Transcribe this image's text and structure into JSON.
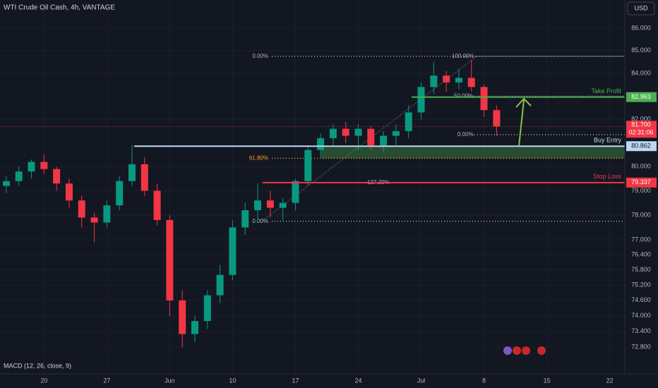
{
  "chart_data": {
    "type": "candlestick",
    "title": "WTI Crude Oil Cash, 4h, VANTAGE",
    "currency": "USD",
    "indicator": "MACD (12, 26, close, 9)",
    "log_scale": true,
    "grid": true,
    "up_color": "#089981",
    "down_color": "#f23645",
    "xlim": [
      -0.5,
      49.2
    ],
    "xticks": [
      {
        "value": 3,
        "label": "20"
      },
      {
        "value": 8,
        "label": "27"
      },
      {
        "value": 13,
        "label": "Jun"
      },
      {
        "value": 18,
        "label": "10"
      },
      {
        "value": 23,
        "label": "17"
      },
      {
        "value": 28,
        "label": "24"
      },
      {
        "value": 33,
        "label": "Jul"
      },
      {
        "value": 38,
        "label": "8"
      },
      {
        "value": 43,
        "label": "15"
      },
      {
        "value": 48,
        "label": "22"
      }
    ],
    "ylim": [
      71.79,
      87.28
    ],
    "yticks": [
      {
        "value": 72.8,
        "label": "72.800"
      },
      {
        "value": 73.4,
        "label": "73.400"
      },
      {
        "value": 74,
        "label": "74.000"
      },
      {
        "value": 74.6,
        "label": "74.600"
      },
      {
        "value": 75.2,
        "label": "75.200"
      },
      {
        "value": 75.8,
        "label": "75.800"
      },
      {
        "value": 76.4,
        "label": "76.400"
      },
      {
        "value": 77,
        "label": "77.000"
      },
      {
        "value": 78,
        "label": "78.000"
      },
      {
        "value": 79,
        "label": "79.000"
      },
      {
        "value": 80,
        "label": "80.000"
      },
      {
        "value": 82,
        "label": "82.000"
      },
      {
        "value": 84,
        "label": "84.000"
      },
      {
        "value": 85,
        "label": "85.000"
      },
      {
        "value": 86,
        "label": "86.000"
      }
    ],
    "open": [
      79.2,
      79.4,
      79.8,
      80.2,
      79.9,
      79.3,
      78.6,
      77.9,
      77.7,
      78.4,
      79.4,
      80.1,
      79.0,
      77.8,
      74.6,
      73.3,
      73.8,
      74.8,
      75.6,
      77.5,
      78.2,
      78.6,
      78.3,
      78.5,
      79.4,
      80.7,
      81.2,
      81.6,
      81.3,
      81.6,
      80.9,
      81.3,
      81.5,
      82.3,
      83.4,
      83.9,
      83.6,
      83.8,
      83.4,
      82.4
    ],
    "high": [
      79.6,
      80.0,
      80.3,
      80.5,
      80.0,
      79.5,
      78.8,
      78.1,
      78.6,
      79.6,
      80.9,
      80.4,
      79.3,
      78.0,
      75.0,
      74.0,
      75.0,
      76.0,
      77.8,
      78.5,
      79.3,
      79.0,
      78.7,
      79.5,
      80.9,
      81.4,
      81.8,
      81.9,
      81.8,
      81.7,
      81.5,
      81.8,
      82.6,
      83.6,
      84.5,
      84.1,
      84.2,
      84.6,
      83.5,
      82.6
    ],
    "low": [
      78.9,
      79.2,
      79.5,
      79.7,
      79.0,
      78.3,
      77.5,
      76.9,
      77.5,
      78.2,
      79.2,
      78.8,
      77.6,
      74.0,
      72.8,
      73.0,
      73.5,
      74.5,
      75.4,
      77.2,
      77.8,
      77.9,
      77.8,
      78.2,
      79.2,
      80.4,
      80.9,
      81.0,
      80.7,
      80.7,
      80.6,
      80.9,
      81.2,
      82.0,
      83.1,
      83.2,
      83.3,
      83.2,
      82.1,
      81.3
    ],
    "close": [
      79.4,
      79.8,
      80.2,
      79.9,
      79.3,
      78.6,
      77.9,
      77.7,
      78.4,
      79.4,
      80.1,
      79.0,
      77.8,
      74.6,
      73.3,
      73.8,
      74.8,
      75.6,
      77.5,
      78.2,
      78.6,
      78.3,
      78.5,
      79.4,
      80.7,
      81.2,
      81.6,
      81.3,
      81.6,
      80.9,
      81.3,
      81.5,
      82.3,
      83.4,
      83.9,
      83.6,
      83.8,
      83.4,
      82.4,
      81.7
    ],
    "last_price": {
      "value": 81.7,
      "label": "81.700"
    },
    "countdown": "02:31:06",
    "levels": [
      {
        "name": "Take Profit",
        "value": 82.963,
        "color": "#4caf50"
      },
      {
        "name": "Buy Entry",
        "value": 80.862,
        "color": "#bbd9f0"
      },
      {
        "name": "Stop Loss",
        "value": 79.337,
        "color": "#f23645"
      }
    ],
    "fib_levels": [
      {
        "label": "0.00%",
        "value": 84.75,
        "color": "#b2b5be"
      },
      {
        "label": "61.80%",
        "value": 80.35,
        "color": "#f5a623"
      },
      {
        "label": "127.20%",
        "value": 79.34,
        "color": "#b2b5be"
      },
      {
        "label": "0.00%",
        "value": 77.75,
        "color": "#b2b5be"
      },
      {
        "label": "100.00%",
        "value": 84.75,
        "color": "#b2b5be"
      },
      {
        "label": "50.00%",
        "value": 83.0,
        "color": "#b2b5be"
      },
      {
        "label": "0.00%",
        "value": 81.35,
        "color": "#b2b5be"
      }
    ]
  }
}
